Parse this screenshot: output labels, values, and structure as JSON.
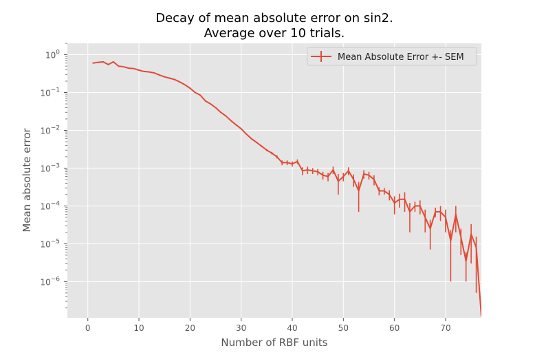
{
  "chart_data": {
    "type": "line",
    "title": [
      "Decay of mean absolute error on sin2.",
      "Average over 10 trials."
    ],
    "xlabel": "Number of RBF units",
    "ylabel": "Mean absolute error",
    "xlim": [
      -4,
      77
    ],
    "ylim": [
      1.1e-07,
      2
    ],
    "yscale": "log",
    "grid": true,
    "legend_position": "top-right",
    "x_ticks": [
      0,
      10,
      20,
      30,
      40,
      50,
      60,
      70
    ],
    "x_tick_labels": [
      "0",
      "10",
      "20",
      "30",
      "40",
      "50",
      "60",
      "70"
    ],
    "y_ticks": [
      1,
      0.1,
      0.01,
      0.001,
      0.0001,
      1e-05,
      1e-06
    ],
    "y_tick_labels": [
      {
        "base": "10",
        "exp": "0"
      },
      {
        "base": "10",
        "exp": "−1"
      },
      {
        "base": "10",
        "exp": "−2"
      },
      {
        "base": "10",
        "exp": "−3"
      },
      {
        "base": "10",
        "exp": "−4"
      },
      {
        "base": "10",
        "exp": "−5"
      },
      {
        "base": "10",
        "exp": "−6"
      }
    ],
    "colors": {
      "series": "#E24A33",
      "background": "#E5E5E5",
      "grid": "#FFFFFF",
      "text": "#555555"
    },
    "series": [
      {
        "name": "Mean Absolute Error +- SEM",
        "x": [
          1,
          2,
          3,
          4,
          5,
          6,
          7,
          8,
          9,
          10,
          11,
          12,
          13,
          14,
          15,
          16,
          17,
          18,
          19,
          20,
          21,
          22,
          23,
          24,
          25,
          26,
          27,
          28,
          29,
          30,
          31,
          32,
          33,
          34,
          35,
          36,
          37,
          38,
          39,
          40,
          41,
          42,
          43,
          44,
          45,
          46,
          47,
          48,
          49,
          50,
          51,
          52,
          53,
          54,
          55,
          56,
          57,
          58,
          59,
          60,
          61,
          62,
          63,
          64,
          65,
          66,
          67,
          68,
          69,
          70,
          71,
          72,
          73,
          74,
          75,
          76,
          77
        ],
        "y": [
          0.6,
          0.63,
          0.65,
          0.55,
          0.65,
          0.5,
          0.48,
          0.44,
          0.43,
          0.39,
          0.36,
          0.35,
          0.33,
          0.29,
          0.26,
          0.24,
          0.22,
          0.19,
          0.16,
          0.13,
          0.1,
          0.085,
          0.06,
          0.05,
          0.04,
          0.03,
          0.024,
          0.018,
          0.014,
          0.011,
          0.008,
          0.006,
          0.0048,
          0.0038,
          0.003,
          0.0025,
          0.002,
          0.0014,
          0.0014,
          0.0013,
          0.0015,
          0.00085,
          0.0009,
          0.00085,
          0.0008,
          0.00065,
          0.0006,
          0.0009,
          0.00045,
          0.0006,
          0.00085,
          0.0005,
          0.00025,
          0.0007,
          0.00065,
          0.0005,
          0.00025,
          0.00025,
          0.0002,
          0.00012,
          0.00015,
          0.00015,
          7e-05,
          0.0001,
          0.0001,
          5e-05,
          2.5e-05,
          7e-05,
          7e-05,
          5e-05,
          1.2e-05,
          6e-05,
          1.5e-05,
          3.5e-06,
          1.8e-05,
          8e-06,
          1.2e-07
        ],
        "err": [
          0.02,
          0.02,
          0.02,
          0.02,
          0.02,
          0.01,
          0.01,
          0.01,
          0.01,
          0.01,
          0.01,
          0.01,
          0.01,
          0.01,
          0.01,
          0.01,
          0.01,
          0.005,
          0.005,
          0.005,
          0.004,
          0.003,
          0.002,
          0.002,
          0.001,
          0.001,
          0.001,
          0.0005,
          0.0005,
          0.0003,
          0.0002,
          0.0002,
          0.0002,
          0.0002,
          0.0002,
          0.0002,
          0.0002,
          0.0002,
          0.0002,
          0.0002,
          0.0002,
          0.0002,
          0.0002,
          0.00015,
          0.00015,
          0.00015,
          0.00015,
          0.0002,
          0.00025,
          0.00015,
          0.0002,
          0.00018,
          0.00018,
          0.00018,
          0.00015,
          0.00015,
          6e-05,
          5e-05,
          6e-05,
          6e-05,
          6e-05,
          8e-05,
          5e-05,
          3e-05,
          4e-05,
          3e-05,
          1.8e-05,
          2e-05,
          3e-05,
          3e-05,
          1.1e-05,
          4e-05,
          1e-05,
          2.5e-06,
          1.5e-05,
          7.5e-06,
          0.0
        ]
      }
    ]
  }
}
